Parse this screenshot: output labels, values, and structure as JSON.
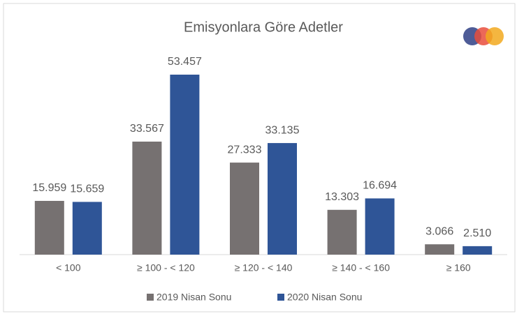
{
  "chart_data": {
    "type": "bar",
    "title": "Emisyonlara Göre Adetler",
    "categories": [
      "< 100",
      "≥ 100 - < 120",
      "≥ 120 - < 140",
      "≥ 140 - < 160",
      "≥ 160"
    ],
    "series": [
      {
        "name": "2019 Nisan Sonu",
        "color": "#767171",
        "values": [
          15959,
          33567,
          27333,
          13303,
          3066
        ],
        "value_labels": [
          "15.959",
          "33.567",
          "27.333",
          "13.303",
          "3.066"
        ]
      },
      {
        "name": "2020 Nisan Sonu",
        "color": "#2f5597",
        "values": [
          15659,
          53457,
          33135,
          16694,
          2510
        ],
        "value_labels": [
          "15.659",
          "53.457",
          "33.135",
          "16.694",
          "2.510"
        ]
      }
    ],
    "legend": "bottom"
  }
}
